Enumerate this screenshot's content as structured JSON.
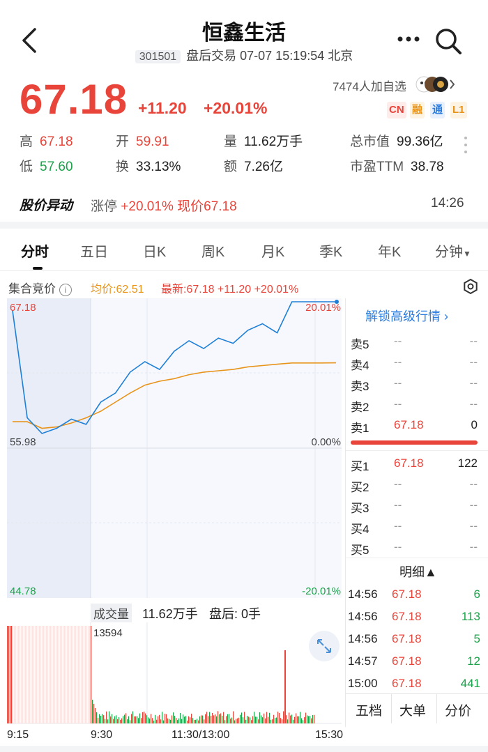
{
  "header": {
    "title": "恒鑫生活",
    "code": "301501",
    "status": "盘后交易 07-07 15:19:54 北京"
  },
  "quote": {
    "price": "67.18",
    "change": "+11.20",
    "change_pct": "+20.01%",
    "watch_count": "7474人加自选",
    "tags": [
      "CN",
      "融",
      "通",
      "L1"
    ],
    "stats": {
      "high_k": "高",
      "high_v": "67.18",
      "low_k": "低",
      "low_v": "57.60",
      "open_k": "开",
      "open_v": "59.91",
      "turnover_k": "换",
      "turnover_v": "33.13%",
      "volume_k": "量",
      "volume_v": "11.62万手",
      "amount_k": "额",
      "amount_v": "7.26亿",
      "mktcap_k": "总市值",
      "mktcap_v": "99.36亿",
      "pe_k": "市盈TTM",
      "pe_v": "38.78"
    }
  },
  "alert": {
    "title": "股价异动",
    "label": "涨停",
    "pct": "+20.01%",
    "now": "现价67.18",
    "time": "14:26"
  },
  "tabs": [
    "分时",
    "五日",
    "日K",
    "周K",
    "月K",
    "季K",
    "年K",
    "分钟"
  ],
  "chart_header": {
    "auction": "集合竞价",
    "avg": "均价:62.51",
    "latest": "最新:67.18 +11.20 +20.01%"
  },
  "chart_data": {
    "type": "line",
    "y_ticks_left": [
      "67.18",
      "55.98",
      "44.78"
    ],
    "y_ticks_right": [
      "20.01%",
      "0.00%",
      "-20.01%"
    ],
    "ylim": [
      44.78,
      67.18
    ],
    "x_labels": [
      "9:15",
      "9:30",
      "11:30/13:00",
      "15:30"
    ],
    "series": [
      {
        "values": [
          66.5,
          58.3,
          57.1,
          57.5,
          58.2,
          57.8,
          59.5,
          60.2,
          61.8,
          62.6,
          62.0,
          63.4,
          64.2,
          63.6,
          64.4,
          64.0,
          65.0,
          65.5,
          64.8,
          67.18,
          67.18,
          67.18,
          67.18
        ]
      },
      {
        "values": [
          58.0,
          58.0,
          57.5,
          57.6,
          57.9,
          58.3,
          58.8,
          59.5,
          60.2,
          60.8,
          61.1,
          61.3,
          61.6,
          61.8,
          61.9,
          62.0,
          62.2,
          62.3,
          62.4,
          62.5,
          62.5,
          62.5,
          62.51
        ]
      }
    ],
    "colors": {
      "price": "#1e7fd6",
      "avg": "#e8941a"
    }
  },
  "volume": {
    "label": "成交量",
    "value": "11.62万手",
    "after": "盘后: 0手",
    "peak": "13594"
  },
  "order_book": {
    "unlock": "解锁高级行情",
    "asks": [
      {
        "k": "卖5",
        "p": "--",
        "v": "--"
      },
      {
        "k": "卖4",
        "p": "--",
        "v": "--"
      },
      {
        "k": "卖3",
        "p": "--",
        "v": "--"
      },
      {
        "k": "卖2",
        "p": "--",
        "v": "--"
      },
      {
        "k": "卖1",
        "p": "67.18",
        "v": "0"
      }
    ],
    "bids": [
      {
        "k": "买1",
        "p": "67.18",
        "v": "122"
      },
      {
        "k": "买2",
        "p": "--",
        "v": "--"
      },
      {
        "k": "买3",
        "p": "--",
        "v": "--"
      },
      {
        "k": "买4",
        "p": "--",
        "v": "--"
      },
      {
        "k": "买5",
        "p": "--",
        "v": "--"
      }
    ],
    "detail_label": "明细▲",
    "details": [
      {
        "t": "14:56",
        "p": "67.18",
        "v": "6"
      },
      {
        "t": "14:56",
        "p": "67.18",
        "v": "113"
      },
      {
        "t": "14:56",
        "p": "67.18",
        "v": "5"
      },
      {
        "t": "14:57",
        "p": "67.18",
        "v": "12"
      },
      {
        "t": "15:00",
        "p": "67.18",
        "v": "441"
      }
    ],
    "bottom_tabs": [
      "五档",
      "大单",
      "分价"
    ]
  }
}
